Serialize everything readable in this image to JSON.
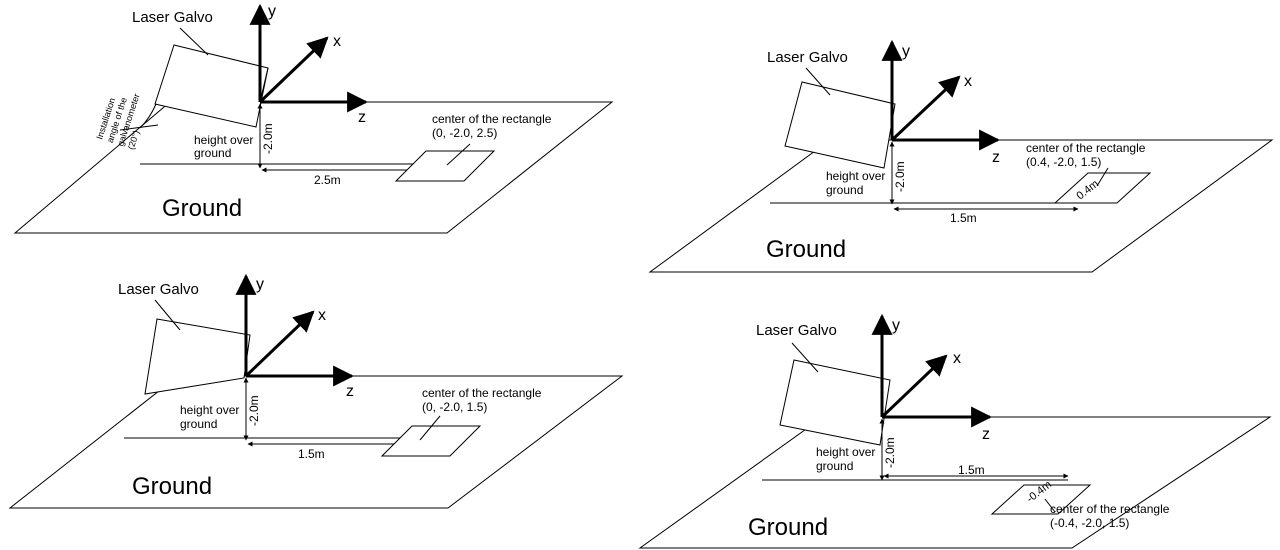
{
  "label_laser": "Laser Galvo",
  "label_ground": "Ground",
  "label_height": [
    "height over",
    "ground"
  ],
  "label_center": "center of the rectangle",
  "axis": {
    "x": "x",
    "y": "y",
    "z": "z"
  },
  "install_angle": [
    "Installation",
    "angle of the",
    "galvanometer",
    "(20°)"
  ],
  "panels": [
    {
      "id": "top-left",
      "height": "-2.0m",
      "distance": "2.5m",
      "coords": "(0, -2.0, 2.5)"
    },
    {
      "id": "bottom-left",
      "height": "-2.0m",
      "distance": "1.5m",
      "coords": "(0, -2.0, 1.5)"
    },
    {
      "id": "top-right",
      "height": "-2.0m",
      "distance": "1.5m",
      "offset": "0.4m",
      "coords": "(0.4, -2.0, 1.5)"
    },
    {
      "id": "bottom-right",
      "height": "-2.0m",
      "distance": "1.5m",
      "offset": "-0.4m",
      "coords": "(-0.4, -2.0, 1.5)"
    }
  ]
}
